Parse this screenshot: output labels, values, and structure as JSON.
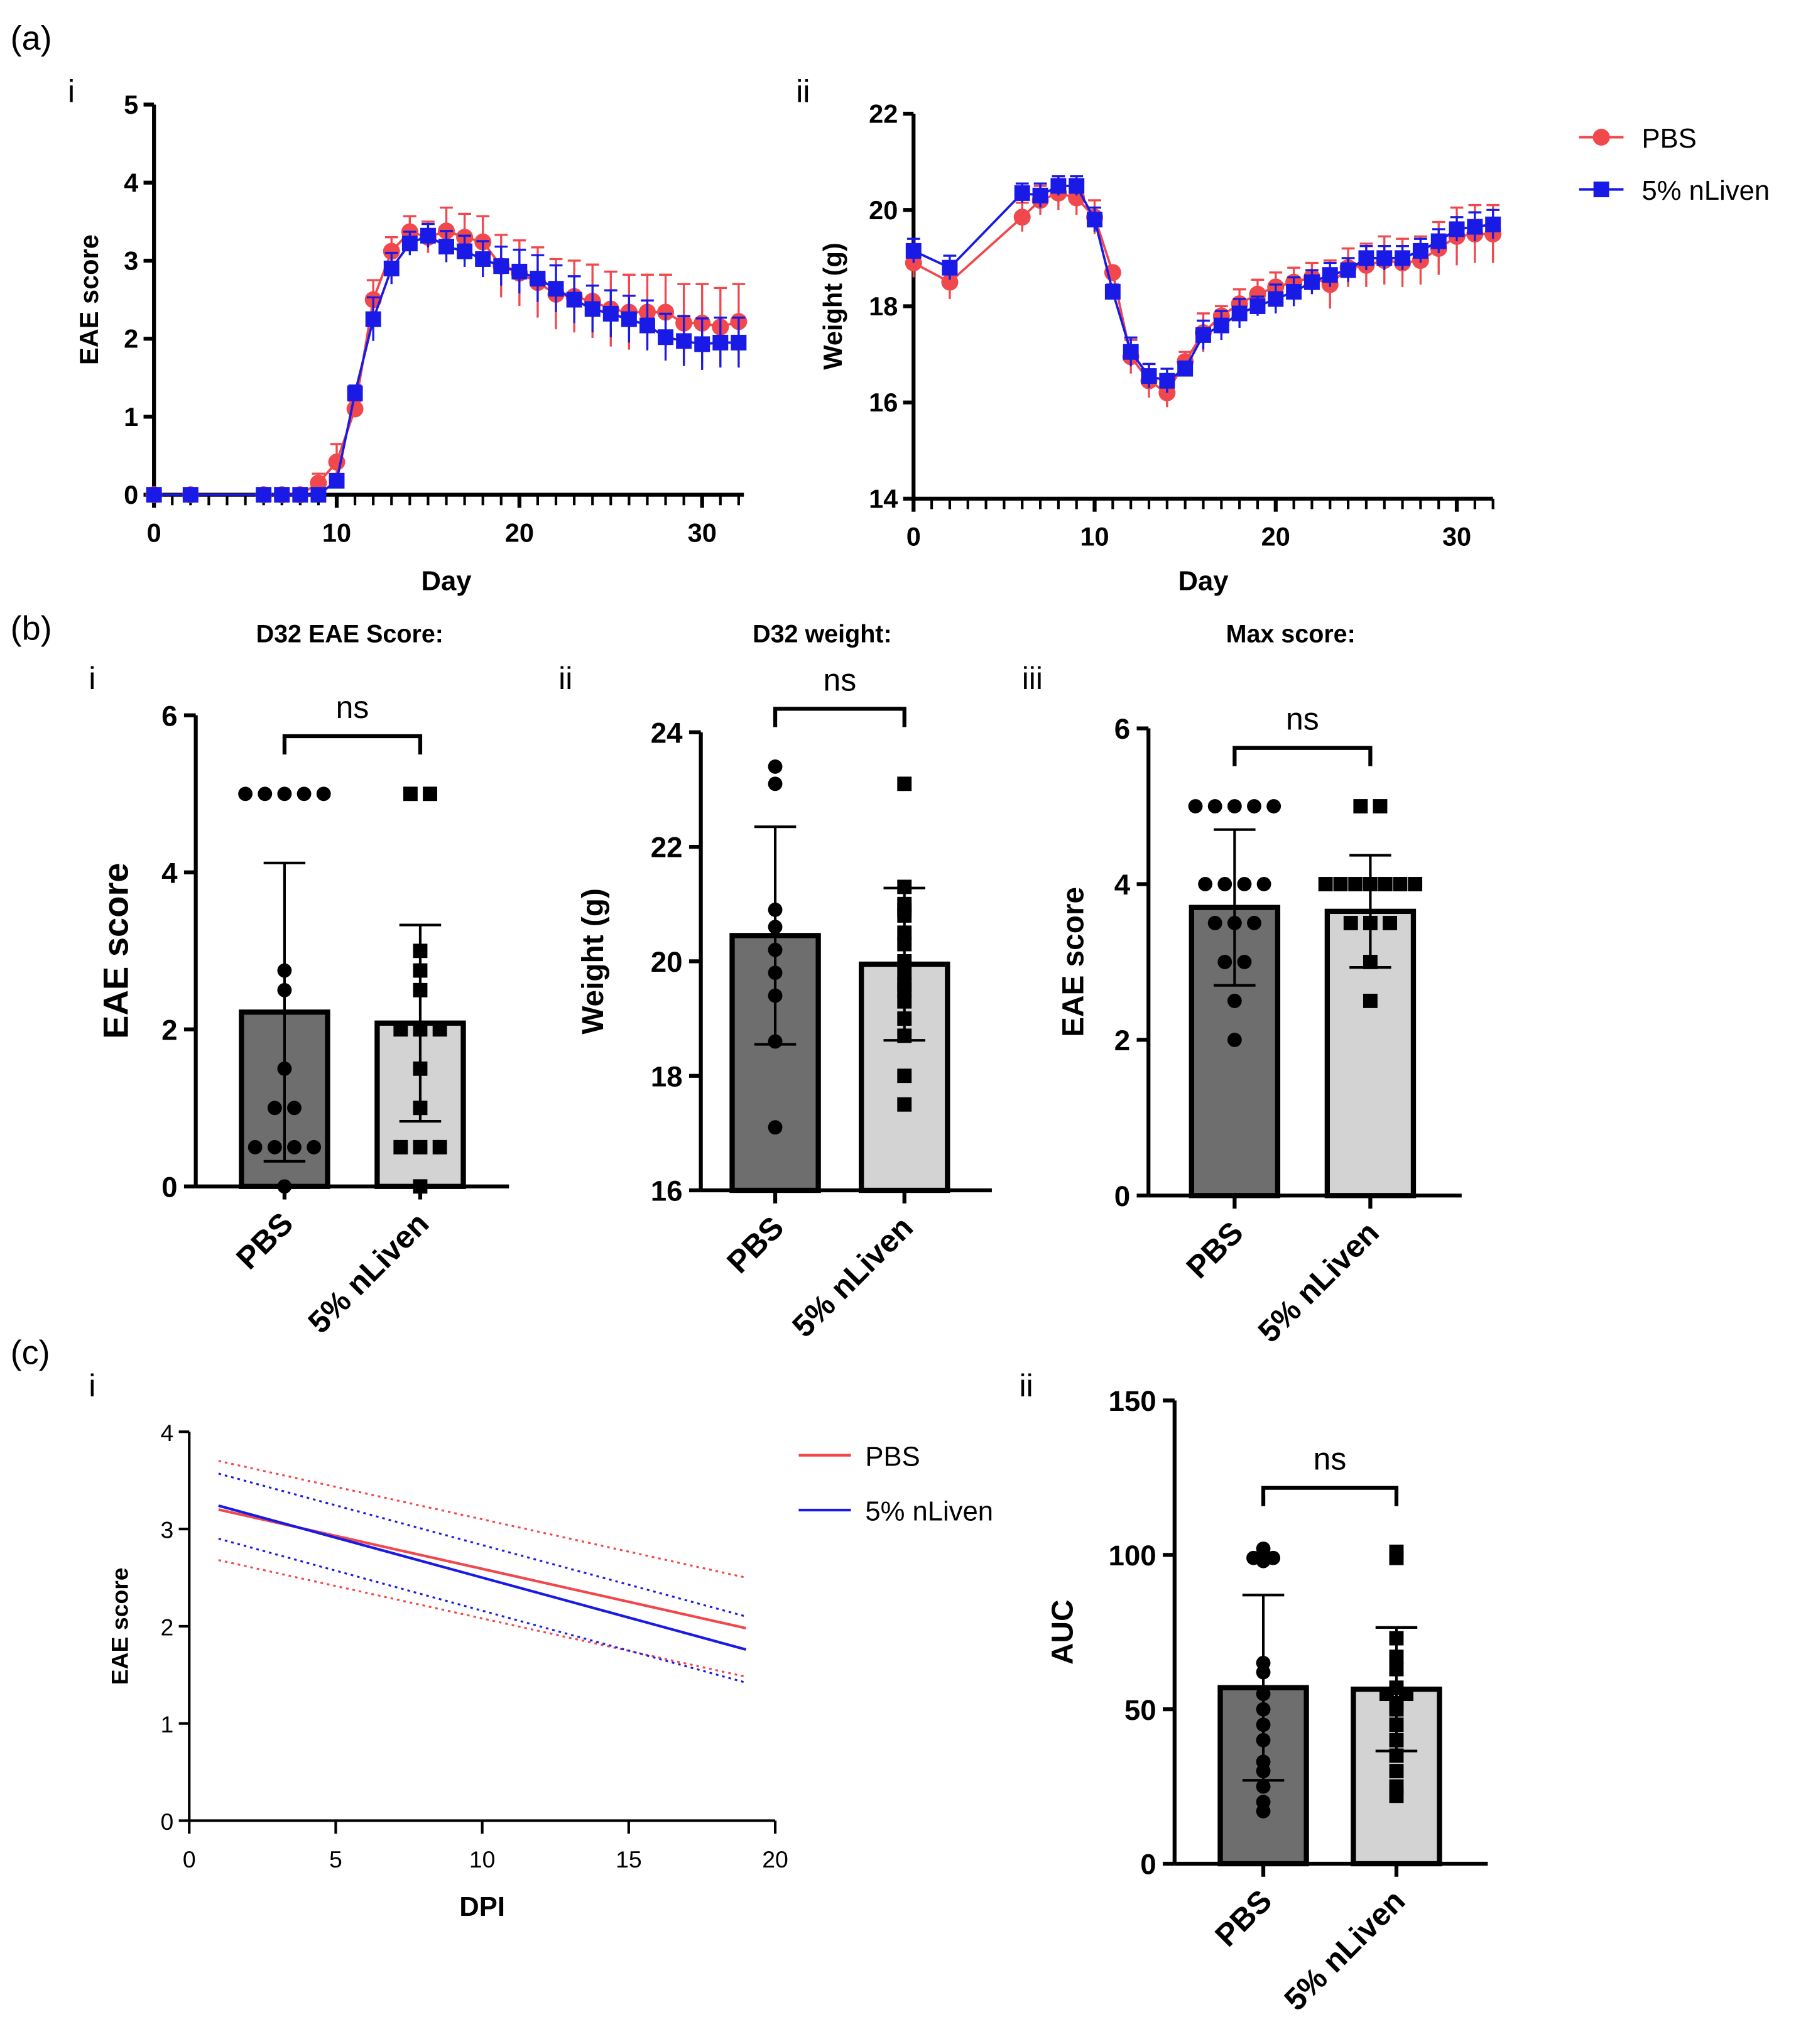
{
  "colors": {
    "pbs": "#f0484c",
    "nliven": "#1a1ae6",
    "bar_pbs": "#6e6e6e",
    "bar_nliven": "#d3d3d3"
  },
  "panel_labels": {
    "a": "(a)",
    "b": "(b)",
    "c": "(c)",
    "i": "i",
    "ii": "ii",
    "iii": "iii"
  },
  "chart_data": [
    {
      "id": "a-i",
      "type": "line",
      "xlabel": "Day",
      "ylabel": "EAE score",
      "xlim": [
        0,
        32
      ],
      "ylim": [
        0,
        5
      ],
      "xticks": [
        0,
        10,
        20,
        30
      ],
      "yticks": [
        0,
        1,
        2,
        3,
        4,
        5
      ],
      "x": [
        0,
        2,
        6,
        7,
        8,
        9,
        10,
        11,
        12,
        13,
        14,
        15,
        16,
        17,
        18,
        19,
        20,
        21,
        22,
        23,
        24,
        25,
        26,
        27,
        28,
        29,
        30,
        31,
        32
      ],
      "series": [
        {
          "name": "PBS",
          "marker": "circle",
          "values": [
            0,
            0,
            0,
            0,
            0,
            0.15,
            0.42,
            1.1,
            2.5,
            3.12,
            3.37,
            3.3,
            3.38,
            3.3,
            3.24,
            2.93,
            2.84,
            2.72,
            2.57,
            2.54,
            2.48,
            2.38,
            2.34,
            2.34,
            2.34,
            2.2,
            2.2,
            2.15,
            2.22
          ],
          "error": [
            0,
            0,
            0,
            0,
            0,
            0.12,
            0.23,
            0.1,
            0.25,
            0.18,
            0.2,
            0.2,
            0.3,
            0.3,
            0.33,
            0.4,
            0.42,
            0.45,
            0.45,
            0.46,
            0.47,
            0.48,
            0.48,
            0.48,
            0.48,
            0.5,
            0.5,
            0.5,
            0.48
          ]
        },
        {
          "name": "5% nLiven",
          "marker": "square",
          "values": [
            0,
            0,
            0,
            0,
            0,
            0,
            0.18,
            1.3,
            2.25,
            2.9,
            3.22,
            3.32,
            3.18,
            3.12,
            3.02,
            2.93,
            2.86,
            2.77,
            2.64,
            2.5,
            2.38,
            2.32,
            2.25,
            2.17,
            2.02,
            1.97,
            1.93,
            1.95,
            1.95
          ],
          "error": [
            0,
            0,
            0,
            0,
            0,
            0,
            0.05,
            0.1,
            0.28,
            0.2,
            0.15,
            0.15,
            0.2,
            0.2,
            0.23,
            0.25,
            0.28,
            0.3,
            0.3,
            0.3,
            0.3,
            0.3,
            0.3,
            0.32,
            0.3,
            0.32,
            0.33,
            0.32,
            0.32
          ]
        }
      ]
    },
    {
      "id": "a-ii",
      "type": "line",
      "xlabel": "Day",
      "ylabel": "Weight (g)",
      "xlim": [
        0,
        32
      ],
      "ylim": [
        14,
        22
      ],
      "xticks": [
        0,
        10,
        20,
        30
      ],
      "yticks": [
        14,
        16,
        18,
        20,
        22
      ],
      "legend": "top-right",
      "x": [
        0,
        2,
        6,
        7,
        8,
        9,
        10,
        11,
        12,
        13,
        14,
        15,
        16,
        17,
        18,
        19,
        20,
        21,
        22,
        23,
        24,
        25,
        26,
        27,
        28,
        29,
        30,
        31,
        32
      ],
      "series": [
        {
          "name": "PBS",
          "marker": "circle",
          "values": [
            18.9,
            18.5,
            19.85,
            20.2,
            20.35,
            20.25,
            19.85,
            18.7,
            16.95,
            16.45,
            16.2,
            16.85,
            17.45,
            17.8,
            18.05,
            18.25,
            18.4,
            18.5,
            18.6,
            18.45,
            18.8,
            18.85,
            18.95,
            18.9,
            18.95,
            19.2,
            19.45,
            19.5,
            19.5
          ],
          "error": [
            0.3,
            0.35,
            0.3,
            0.3,
            0.35,
            0.35,
            0.35,
            0.1,
            0.35,
            0.35,
            0.3,
            0.2,
            0.4,
            0.2,
            0.3,
            0.3,
            0.3,
            0.3,
            0.3,
            0.5,
            0.4,
            0.45,
            0.5,
            0.5,
            0.5,
            0.55,
            0.6,
            0.6,
            0.6
          ]
        },
        {
          "name": "5% nLiven",
          "marker": "square",
          "values": [
            19.15,
            18.8,
            20.35,
            20.3,
            20.5,
            20.5,
            19.8,
            18.3,
            17.05,
            16.55,
            16.45,
            16.7,
            17.4,
            17.6,
            17.85,
            18.0,
            18.15,
            18.3,
            18.5,
            18.65,
            18.75,
            19.0,
            19.0,
            19.0,
            19.15,
            19.35,
            19.6,
            19.65,
            19.7
          ],
          "error": [
            0.25,
            0.25,
            0.2,
            0.25,
            0.2,
            0.2,
            0.25,
            0.15,
            0.3,
            0.25,
            0.25,
            0.15,
            0.3,
            0.3,
            0.3,
            0.2,
            0.3,
            0.3,
            0.25,
            0.25,
            0.25,
            0.25,
            0.25,
            0.25,
            0.25,
            0.25,
            0.25,
            0.3,
            0.3
          ]
        }
      ]
    },
    {
      "id": "b-i",
      "type": "bar",
      "title": "D32 EAE Score:",
      "ylabel": "EAE score",
      "ylim": [
        0,
        6
      ],
      "yticks": [
        0,
        2,
        4,
        6
      ],
      "categories": [
        "PBS",
        "5% nLiven"
      ],
      "annotation": "ns",
      "values": [
        2.22,
        2.08
      ],
      "sd": [
        1.9,
        1.25
      ],
      "points": [
        [
          5,
          5,
          5,
          5,
          5,
          2.75,
          2.5,
          1.5,
          1,
          1,
          0.5,
          0.5,
          0.5,
          0.5,
          0
        ],
        [
          5,
          5,
          3,
          2.75,
          2.5,
          2,
          2,
          2,
          1.5,
          1,
          0.5,
          0.5,
          0.5,
          0
        ]
      ]
    },
    {
      "id": "b-ii",
      "type": "bar",
      "title": "D32 weight:",
      "ylabel": "Weight (g)",
      "ylim": [
        16,
        24
      ],
      "yticks": [
        16,
        18,
        20,
        22,
        24
      ],
      "categories": [
        "PBS",
        "5% nLiven"
      ],
      "annotation": "ns",
      "values": [
        20.45,
        19.95
      ],
      "sd": [
        1.9,
        1.33
      ],
      "points": [
        [
          23.4,
          23.1,
          20.9,
          20.6,
          20.2,
          19.8,
          19.4,
          18.6,
          17.1
        ],
        [
          23.1,
          21.3,
          21.0,
          20.9,
          20.8,
          20.5,
          20.3,
          20.0,
          19.8,
          19.6,
          19.5,
          19.3,
          19.0,
          18.7,
          18.0,
          17.5
        ]
      ]
    },
    {
      "id": "b-iii",
      "type": "bar",
      "title": "Max score:",
      "ylabel": "EAE score",
      "ylim": [
        0,
        6
      ],
      "yticks": [
        0,
        2,
        4,
        6
      ],
      "categories": [
        "PBS",
        "5% nLiven"
      ],
      "annotation": "ns",
      "values": [
        3.7,
        3.65
      ],
      "sd": [
        1.0,
        0.72
      ],
      "points": [
        [
          5,
          5,
          5,
          5,
          5,
          4,
          4,
          4,
          4,
          3.5,
          3.5,
          3.5,
          3,
          3,
          2.5,
          2
        ],
        [
          5,
          5,
          4,
          4,
          4,
          4,
          4,
          4,
          4,
          3.5,
          3.5,
          3.5,
          3,
          2.5
        ]
      ]
    },
    {
      "id": "c-i",
      "type": "line",
      "xlabel": "DPI",
      "ylabel": "EAE score",
      "xlim": [
        0,
        20
      ],
      "ylim": [
        0,
        4
      ],
      "xticks": [
        0,
        5,
        10,
        15,
        20
      ],
      "yticks": [
        0,
        1,
        2,
        3,
        4
      ],
      "legend": "top-right",
      "x": [
        1,
        19
      ],
      "series": [
        {
          "name": "PBS",
          "values": [
            3.2,
            1.98
          ],
          "ci_upper": [
            3.7,
            2.5
          ],
          "ci_lower": [
            2.68,
            1.48
          ]
        },
        {
          "name": "5% nLiven",
          "values": [
            3.24,
            1.76
          ],
          "ci_upper": [
            3.57,
            2.1
          ],
          "ci_lower": [
            2.9,
            1.42
          ]
        }
      ]
    },
    {
      "id": "c-ii",
      "type": "bar",
      "ylabel": "AUC",
      "ylim": [
        0,
        150
      ],
      "yticks": [
        0,
        50,
        100,
        150
      ],
      "categories": [
        "PBS",
        "5% nLiven"
      ],
      "annotation": "ns",
      "values": [
        57,
        56.5
      ],
      "sd": [
        30,
        20
      ],
      "points": [
        [
          99,
          98,
          99,
          102,
          65,
          62,
          55,
          50,
          45,
          40,
          33,
          30,
          25,
          20,
          17
        ],
        [
          101,
          99,
          73,
          67,
          63,
          57,
          55,
          55,
          52,
          50,
          45,
          40,
          35,
          30,
          25,
          22
        ]
      ]
    }
  ]
}
